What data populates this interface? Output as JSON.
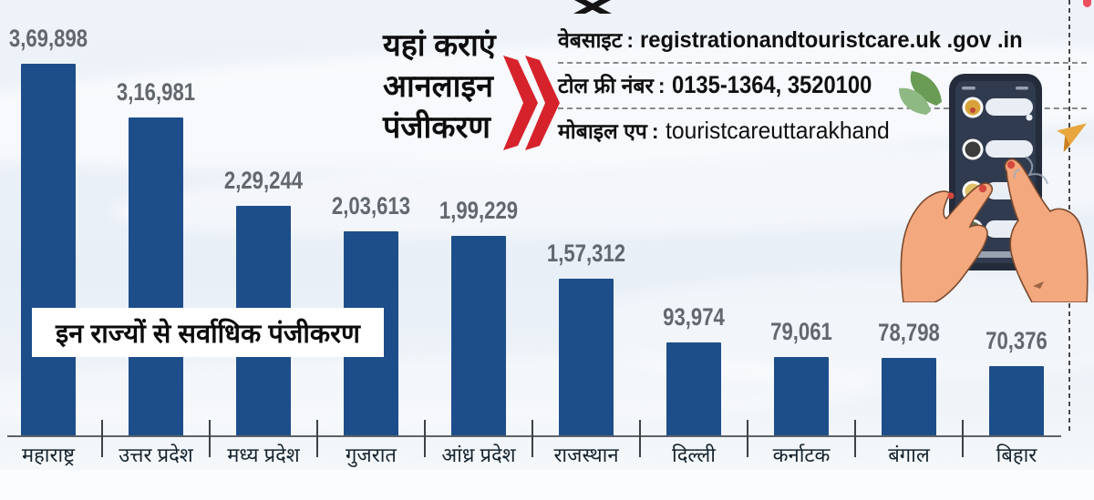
{
  "chart_data": {
    "type": "bar",
    "title": "इन राज्यों से सर्वाधिक पंजीकरण",
    "categories": [
      "महाराष्ट्र",
      "उत्तर प्रदेश",
      "मध्य प्रदेश",
      "गुजरात",
      "आंध्र प्रदेश",
      "राजस्थान",
      "दिल्ली",
      "कर्नाटक",
      "बंगाल",
      "बिहार"
    ],
    "values": [
      369898,
      316981,
      229244,
      203613,
      199229,
      157312,
      93974,
      79061,
      78798,
      70376
    ],
    "value_labels": [
      "3,69,898",
      "3,16,981",
      "2,29,244",
      "2,03,613",
      "1,99,229",
      "1,57,312",
      "93,974",
      "79,061",
      "78,798",
      "70,376"
    ],
    "xlabel": "",
    "ylabel": "",
    "ylim": [
      0,
      369898
    ],
    "grid": false,
    "legend": "none",
    "bar_color": "#1d4e8a"
  },
  "overlay": {
    "caption": "इन राज्यों से सर्वाधिक पंजीकरण"
  },
  "cta": {
    "heading_lines": [
      "यहां कराएं",
      "आनलाइन",
      "पंजीकरण"
    ],
    "chevron_color": "#d6232b"
  },
  "contact": {
    "rows": [
      {
        "label": "वेबसाइट",
        "value": "registrationandtouristcare.uk .gov .in"
      },
      {
        "label": "टोल फ्री नंबर",
        "value": "0135-1364, 3520100"
      },
      {
        "label": "मोबाइल एप",
        "value": "touristcareuttarakhand"
      }
    ]
  },
  "icons": {
    "chevrons": "double-chevron-right",
    "phone_illustration": "hands-holding-smartphone-with-chat-app",
    "leaf": "green-leaf",
    "paper_plane": "orange-paper-plane"
  },
  "colors": {
    "bar": "#1d4e8a",
    "chevron_red": "#d6232b",
    "value_label_gray": "#62686e",
    "leaf_green": "#6a9c55"
  }
}
